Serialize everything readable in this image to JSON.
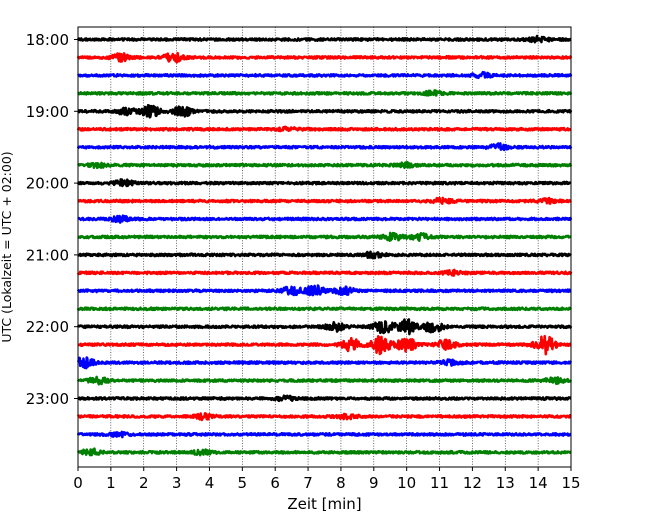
{
  "chart_data": {
    "type": "line",
    "title": "",
    "xlabel": "Zeit  [min]",
    "ylabel": "UTC (Lokalzeit = UTC + 02:00)",
    "xlim": [
      0,
      15
    ],
    "x_ticks": [
      "0",
      "1",
      "2",
      "3",
      "4",
      "5",
      "6",
      "7",
      "8",
      "9",
      "10",
      "11",
      "12",
      "13",
      "14",
      "15"
    ],
    "y_ticks": [
      "18:00",
      "19:00",
      "20:00",
      "21:00",
      "22:00",
      "23:00"
    ],
    "grid": "vertical-dotted",
    "trace_interval_minutes": 15,
    "color_cycle": [
      "#000000",
      "#ff0000",
      "#0000ff",
      "#008000"
    ],
    "series": [
      {
        "start": "18:00",
        "color": "#000000",
        "bursts": [
          {
            "t": 14.0,
            "amp": 0.25
          }
        ]
      },
      {
        "start": "18:15",
        "color": "#ff0000",
        "bursts": [
          {
            "t": 1.3,
            "amp": 0.35
          },
          {
            "t": 2.9,
            "amp": 0.45
          }
        ]
      },
      {
        "start": "18:30",
        "color": "#0000ff",
        "bursts": [
          {
            "t": 12.3,
            "amp": 0.25
          }
        ]
      },
      {
        "start": "18:45",
        "color": "#008000",
        "bursts": [
          {
            "t": 10.8,
            "amp": 0.2
          }
        ]
      },
      {
        "start": "19:00",
        "color": "#000000",
        "bursts": [
          {
            "t": 1.5,
            "amp": 0.35
          },
          {
            "t": 2.2,
            "amp": 0.55
          },
          {
            "t": 3.2,
            "amp": 0.5
          }
        ]
      },
      {
        "start": "19:15",
        "color": "#ff0000",
        "bursts": [
          {
            "t": 6.4,
            "amp": 0.15
          }
        ]
      },
      {
        "start": "19:30",
        "color": "#0000ff",
        "bursts": [
          {
            "t": 12.8,
            "amp": 0.3
          }
        ]
      },
      {
        "start": "19:45",
        "color": "#008000",
        "bursts": [
          {
            "t": 0.6,
            "amp": 0.2
          },
          {
            "t": 10.0,
            "amp": 0.2
          }
        ]
      },
      {
        "start": "20:00",
        "color": "#000000",
        "bursts": [
          {
            "t": 1.4,
            "amp": 0.3
          }
        ]
      },
      {
        "start": "20:15",
        "color": "#ff0000",
        "bursts": [
          {
            "t": 11.1,
            "amp": 0.3
          },
          {
            "t": 14.3,
            "amp": 0.2
          }
        ]
      },
      {
        "start": "20:30",
        "color": "#0000ff",
        "bursts": [
          {
            "t": 1.3,
            "amp": 0.25
          }
        ]
      },
      {
        "start": "20:45",
        "color": "#008000",
        "bursts": [
          {
            "t": 9.6,
            "amp": 0.35
          },
          {
            "t": 10.4,
            "amp": 0.3
          }
        ]
      },
      {
        "start": "21:00",
        "color": "#000000",
        "bursts": [
          {
            "t": 9.0,
            "amp": 0.3
          }
        ]
      },
      {
        "start": "21:15",
        "color": "#ff0000",
        "bursts": [
          {
            "t": 11.4,
            "amp": 0.2
          }
        ]
      },
      {
        "start": "21:30",
        "color": "#0000ff",
        "bursts": [
          {
            "t": 6.5,
            "amp": 0.4
          },
          {
            "t": 7.2,
            "amp": 0.5
          },
          {
            "t": 8.1,
            "amp": 0.35
          }
        ]
      },
      {
        "start": "21:45",
        "color": "#008000",
        "bursts": []
      },
      {
        "start": "22:00",
        "color": "#000000",
        "bursts": [
          {
            "t": 7.8,
            "amp": 0.45
          },
          {
            "t": 9.3,
            "amp": 0.65
          },
          {
            "t": 10.0,
            "amp": 0.7
          },
          {
            "t": 10.8,
            "amp": 0.55
          }
        ]
      },
      {
        "start": "22:15",
        "color": "#ff0000",
        "bursts": [
          {
            "t": 8.3,
            "amp": 0.6
          },
          {
            "t": 9.2,
            "amp": 0.85
          },
          {
            "t": 10.0,
            "amp": 0.7
          },
          {
            "t": 11.2,
            "amp": 0.45
          },
          {
            "t": 14.2,
            "amp": 0.9
          }
        ]
      },
      {
        "start": "22:30",
        "color": "#0000ff",
        "bursts": [
          {
            "t": 0.2,
            "amp": 0.5
          },
          {
            "t": 11.3,
            "amp": 0.2
          }
        ]
      },
      {
        "start": "22:45",
        "color": "#008000",
        "bursts": [
          {
            "t": 0.6,
            "amp": 0.3
          },
          {
            "t": 14.5,
            "amp": 0.25
          }
        ]
      },
      {
        "start": "23:00",
        "color": "#000000",
        "bursts": [
          {
            "t": 6.3,
            "amp": 0.2
          }
        ]
      },
      {
        "start": "23:15",
        "color": "#ff0000",
        "bursts": [
          {
            "t": 3.8,
            "amp": 0.25
          },
          {
            "t": 8.2,
            "amp": 0.2
          }
        ]
      },
      {
        "start": "23:30",
        "color": "#0000ff",
        "bursts": [
          {
            "t": 1.2,
            "amp": 0.2
          }
        ]
      },
      {
        "start": "23:45",
        "color": "#008000",
        "bursts": [
          {
            "t": 0.4,
            "amp": 0.3
          },
          {
            "t": 3.8,
            "amp": 0.2
          }
        ]
      }
    ]
  }
}
